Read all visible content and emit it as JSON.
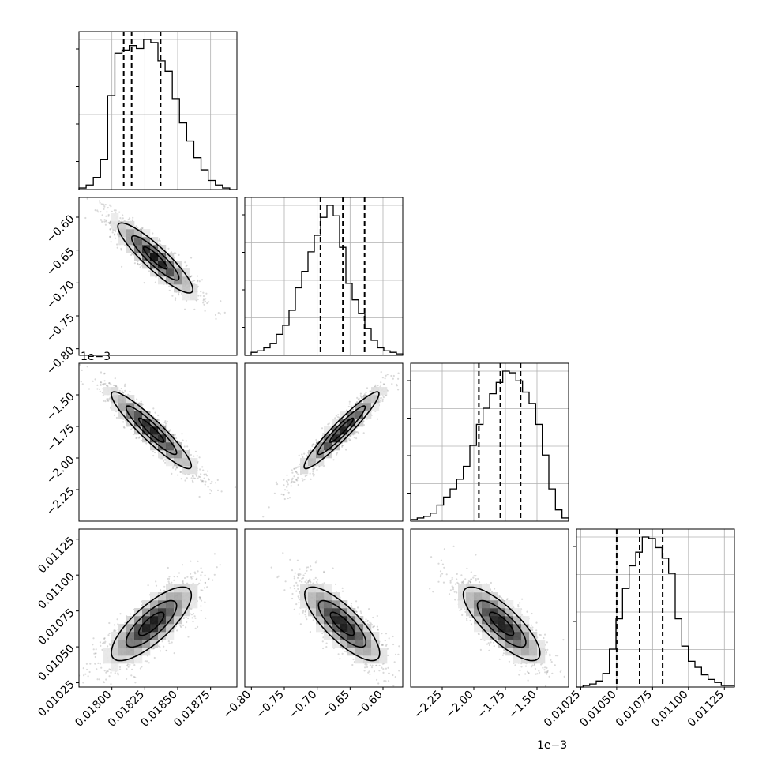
{
  "chart_data": {
    "type": "corner",
    "parameters": [
      {
        "id": "p0",
        "range": [
          0.01775,
          0.01895
        ],
        "ticks": [
          0.018,
          0.01825,
          0.0185,
          0.01875
        ],
        "tick_labels": [
          "0.01800",
          "0.01825",
          "0.01850",
          "0.01875"
        ],
        "offset_text": "",
        "quantiles": [
          0.01809,
          0.01815,
          0.01837
        ],
        "histogram": [
          0.01,
          0.03,
          0.08,
          0.2,
          0.62,
          0.9,
          0.92,
          0.95,
          0.93,
          0.99,
          0.97,
          0.85,
          0.78,
          0.6,
          0.44,
          0.32,
          0.21,
          0.13,
          0.06,
          0.03,
          0.01,
          0.0
        ]
      },
      {
        "id": "p1",
        "range": [
          -0.81,
          -0.57
        ],
        "ticks": [
          -0.8,
          -0.75,
          -0.7,
          -0.65,
          -0.6
        ],
        "tick_labels": [
          "−0.80",
          "−0.75",
          "−0.70",
          "−0.65",
          "−0.60"
        ],
        "offset_text": "",
        "quantiles": [
          -0.695,
          -0.661,
          -0.628
        ],
        "histogram": [
          0.0,
          0.02,
          0.03,
          0.05,
          0.08,
          0.14,
          0.2,
          0.3,
          0.45,
          0.56,
          0.69,
          0.8,
          0.92,
          1.0,
          0.93,
          0.72,
          0.48,
          0.37,
          0.28,
          0.18,
          0.1,
          0.05,
          0.03,
          0.02,
          0.01
        ]
      },
      {
        "id": "p2",
        "range": [
          -2.5,
          -1.25
        ],
        "ticks": [
          -2.25,
          -2.0,
          -1.75,
          -1.5
        ],
        "tick_labels": [
          "−2.25",
          "−2.00",
          "−1.75",
          "−1.50"
        ],
        "offset_text": "1e−3",
        "quantiles": [
          -1.96,
          -1.79,
          -1.63
        ],
        "histogram": [
          0.01,
          0.02,
          0.03,
          0.05,
          0.1,
          0.15,
          0.2,
          0.26,
          0.34,
          0.47,
          0.6,
          0.7,
          0.79,
          0.86,
          0.93,
          0.92,
          0.87,
          0.8,
          0.73,
          0.6,
          0.41,
          0.2,
          0.07,
          0.02
        ]
      },
      {
        "id": "p3",
        "range": [
          0.01022,
          0.01132
        ],
        "ticks": [
          0.01025,
          0.0105,
          0.01075,
          0.011,
          0.01125
        ],
        "tick_labels": [
          "0.01025",
          "0.01050",
          "0.01075",
          "0.01100",
          "0.01125"
        ],
        "offset_text": "",
        "quantiles": [
          0.0105,
          0.01066,
          0.01082
        ],
        "histogram": [
          0.0,
          0.01,
          0.02,
          0.04,
          0.09,
          0.25,
          0.45,
          0.65,
          0.8,
          0.89,
          0.99,
          0.98,
          0.92,
          0.85,
          0.75,
          0.45,
          0.27,
          0.17,
          0.13,
          0.08,
          0.05,
          0.03,
          0.01,
          0.01
        ]
      }
    ],
    "pairs": [
      {
        "x": "p0",
        "y": "p1",
        "mean": [
          0.01833,
          -0.662
        ],
        "sd": [
          0.00015,
          0.028
        ],
        "rho": -0.9
      },
      {
        "x": "p0",
        "y": "p2",
        "mean": [
          0.0183,
          -1.78
        ],
        "sd": [
          0.00016,
          0.16
        ],
        "rho": -0.93
      },
      {
        "x": "p1",
        "y": "p2",
        "mean": [
          -0.663,
          -1.78
        ],
        "sd": [
          0.03,
          0.16
        ],
        "rho": 0.95
      },
      {
        "x": "p0",
        "y": "p3",
        "mean": [
          0.0183,
          0.01066
        ],
        "sd": [
          0.00016,
          0.000135
        ],
        "rho": 0.78
      },
      {
        "x": "p1",
        "y": "p3",
        "mean": [
          -0.662,
          0.01066
        ],
        "sd": [
          0.03,
          0.000135
        ],
        "rho": -0.8
      },
      {
        "x": "p2",
        "y": "p3",
        "mean": [
          -1.78,
          0.01066
        ],
        "sd": [
          0.16,
          0.000135
        ],
        "rho": -0.8
      }
    ],
    "grid": true
  }
}
